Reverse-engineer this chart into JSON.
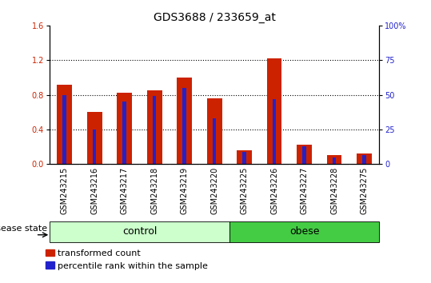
{
  "title": "GDS3688 / 233659_at",
  "samples": [
    "GSM243215",
    "GSM243216",
    "GSM243217",
    "GSM243218",
    "GSM243219",
    "GSM243220",
    "GSM243225",
    "GSM243226",
    "GSM243227",
    "GSM243228",
    "GSM243275"
  ],
  "transformed_count": [
    0.92,
    0.6,
    0.82,
    0.85,
    1.0,
    0.76,
    0.16,
    1.22,
    0.22,
    0.1,
    0.12
  ],
  "percentile_rank_pct": [
    50.0,
    25.0,
    45.0,
    49.0,
    55.0,
    33.0,
    9.0,
    47.0,
    13.0,
    5.0,
    6.5
  ],
  "ylim_left": [
    0,
    1.6
  ],
  "ylim_right": [
    0,
    100
  ],
  "yticks_left": [
    0,
    0.4,
    0.8,
    1.2,
    1.6
  ],
  "yticks_right": [
    0,
    25,
    50,
    75,
    100
  ],
  "bar_color_red": "#cc2200",
  "bar_color_blue": "#2222cc",
  "control_color": "#ccffcc",
  "obese_color": "#44cc44",
  "bg_color": "#c8c8c8",
  "title_fontsize": 10,
  "tick_fontsize": 7,
  "legend_fontsize": 8,
  "group_label_fontsize": 9,
  "disease_state_fontsize": 8
}
